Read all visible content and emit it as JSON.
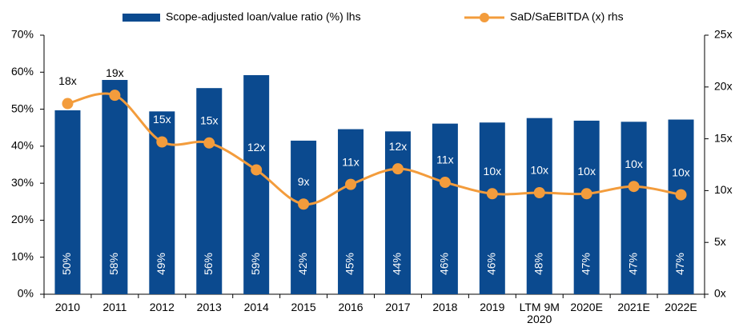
{
  "chart_data": {
    "type": "bar-line",
    "categories": [
      "2010",
      "2011",
      "2012",
      "2013",
      "2014",
      "2015",
      "2016",
      "2017",
      "2018",
      "2019",
      "LTM 9M 2020",
      "2020E",
      "2021E",
      "2022E"
    ],
    "series": [
      {
        "name": "Scope-adjusted loan/value ratio (%) lhs",
        "type": "bar",
        "color": "#0b4a8f",
        "values": [
          49.7,
          57.9,
          49.4,
          55.7,
          59.2,
          41.5,
          44.6,
          44.0,
          46.1,
          46.4,
          47.6,
          46.9,
          46.6,
          47.2
        ],
        "value_labels": [
          "50%",
          "58%",
          "49%",
          "56%",
          "59%",
          "42%",
          "45%",
          "44%",
          "46%",
          "46%",
          "48%",
          "47%",
          "47%",
          "47%"
        ]
      },
      {
        "name": "SaD/SaEBITDA (x) rhs",
        "type": "line",
        "axis": "y2",
        "color": "#f39c3c",
        "values": [
          18.4,
          19.2,
          14.7,
          14.6,
          12.0,
          8.7,
          10.6,
          12.1,
          10.8,
          9.7,
          9.8,
          9.7,
          10.4,
          9.6
        ],
        "value_labels": [
          "18x",
          "19x",
          "15x",
          "15x",
          "12x",
          "9x",
          "11x",
          "12x",
          "11x",
          "10x",
          "10x",
          "10x",
          "10x",
          "10x"
        ]
      }
    ],
    "ylim": [
      0,
      70
    ],
    "yticks": [
      {
        "value": 0,
        "label": "0%"
      },
      {
        "value": 10,
        "label": "10%"
      },
      {
        "value": 20,
        "label": "20%"
      },
      {
        "value": 30,
        "label": "30%"
      },
      {
        "value": 40,
        "label": "40%"
      },
      {
        "value": 50,
        "label": "50%"
      },
      {
        "value": 60,
        "label": "60%"
      },
      {
        "value": 70,
        "label": "70%"
      }
    ],
    "y2lim": [
      0,
      25
    ],
    "y2ticks": [
      {
        "value": 0,
        "label": "0x"
      },
      {
        "value": 5,
        "label": "5x"
      },
      {
        "value": 10,
        "label": "10x"
      },
      {
        "value": 15,
        "label": "15x"
      },
      {
        "value": 20,
        "label": "20x"
      },
      {
        "value": 25,
        "label": "25x"
      }
    ],
    "legend": "top",
    "grid": false
  }
}
